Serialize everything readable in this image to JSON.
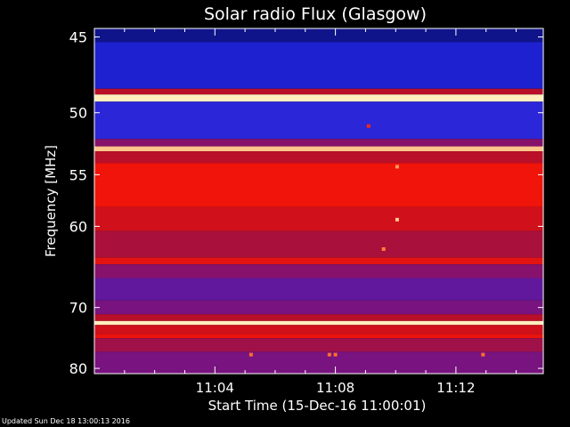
{
  "chart_data": {
    "type": "heatmap",
    "title": "Solar radio Flux (Glasgow)",
    "xlabel": "Start Time (15-Dec-16 11:00:01)",
    "ylabel": "Frequency [MHz]",
    "x_ticks": [
      "11:04",
      "11:08",
      "11:12"
    ],
    "x_tick_minutes": [
      4,
      8,
      12
    ],
    "xlim_minutes": [
      0,
      14.9
    ],
    "y_ticks": [
      45,
      50,
      55,
      60,
      70,
      80
    ],
    "ylim_mhz": [
      44.5,
      81
    ],
    "y_scale": "inverse-frequency (1/f)",
    "colormap": "blue-red-yellow",
    "bands_mhz": [
      {
        "lo": 44.5,
        "hi": 45.3,
        "level": 0.1
      },
      {
        "lo": 45.3,
        "hi": 48.3,
        "level": 0.22
      },
      {
        "lo": 48.3,
        "hi": 48.7,
        "level": 0.55
      },
      {
        "lo": 48.7,
        "hi": 49.2,
        "level": 1.0
      },
      {
        "lo": 49.2,
        "hi": 52.0,
        "level": 0.27
      },
      {
        "lo": 52.0,
        "hi": 52.6,
        "level": 0.45
      },
      {
        "lo": 52.6,
        "hi": 53.0,
        "level": 0.95
      },
      {
        "lo": 53.0,
        "hi": 54.0,
        "level": 0.55
      },
      {
        "lo": 54.0,
        "hi": 58.0,
        "level": 0.72
      },
      {
        "lo": 58.0,
        "hi": 60.5,
        "level": 0.62
      },
      {
        "lo": 60.5,
        "hi": 63.5,
        "level": 0.52
      },
      {
        "lo": 63.5,
        "hi": 64.3,
        "level": 0.68
      },
      {
        "lo": 64.3,
        "hi": 66.0,
        "level": 0.45
      },
      {
        "lo": 66.0,
        "hi": 69.0,
        "level": 0.38
      },
      {
        "lo": 69.0,
        "hi": 71.0,
        "level": 0.42
      },
      {
        "lo": 71.0,
        "hi": 72.0,
        "level": 0.55
      },
      {
        "lo": 72.0,
        "hi": 72.6,
        "level": 1.0
      },
      {
        "lo": 72.6,
        "hi": 74.0,
        "level": 0.62
      },
      {
        "lo": 74.0,
        "hi": 74.7,
        "level": 0.7
      },
      {
        "lo": 74.7,
        "hi": 77.0,
        "level": 0.5
      },
      {
        "lo": 77.0,
        "hi": 81.0,
        "level": 0.42
      }
    ],
    "spots": [
      {
        "minute": 9.1,
        "mhz": 51.0,
        "level": 0.6
      },
      {
        "minute": 10.05,
        "mhz": 54.3,
        "level": 0.75
      },
      {
        "minute": 10.05,
        "mhz": 59.3,
        "level": 0.8
      },
      {
        "minute": 9.6,
        "mhz": 62.5,
        "level": 0.72
      },
      {
        "minute": 5.2,
        "mhz": 77.5,
        "level": 0.7
      },
      {
        "minute": 7.8,
        "mhz": 77.5,
        "level": 0.7
      },
      {
        "minute": 8.0,
        "mhz": 77.5,
        "level": 0.7
      },
      {
        "minute": 12.9,
        "mhz": 77.5,
        "level": 0.7
      }
    ]
  },
  "footer": {
    "updated": "Updated Sun Dec 18 13:00:13 2016"
  }
}
